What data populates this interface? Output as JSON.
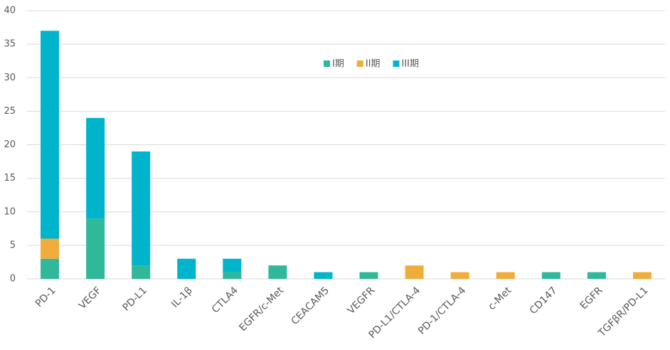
{
  "chart_data": {
    "type": "stacked_bar",
    "categories": [
      "PD-1",
      "VEGF",
      "PD-L1",
      "IL-1β",
      "CTLA4",
      "EGFR/c-Met",
      "CEACAM5",
      "VEGFR",
      "PD-L1/CTLA-4",
      "PD-1/CTLA-4",
      "c-Met",
      "CD147",
      "EGFR",
      "TGFβR/PD-L1"
    ],
    "series": [
      {
        "name": "I期",
        "color": "#2fb89a",
        "values": [
          3,
          9,
          2,
          0,
          1,
          2,
          0,
          1,
          0,
          0,
          0,
          1,
          1,
          0
        ]
      },
      {
        "name": "II期",
        "color": "#f0ad3c",
        "values": [
          3,
          0,
          0,
          0,
          0,
          0,
          0,
          0,
          2,
          1,
          1,
          0,
          0,
          1
        ]
      },
      {
        "name": "III期",
        "color": "#00b4cc",
        "values": [
          31,
          15,
          17,
          3,
          2,
          0,
          1,
          0,
          0,
          0,
          0,
          0,
          0,
          0
        ]
      }
    ],
    "ylim": [
      0,
      40
    ],
    "yticks": [
      0,
      5,
      10,
      15,
      20,
      25,
      30,
      35,
      40
    ],
    "grid": true
  }
}
